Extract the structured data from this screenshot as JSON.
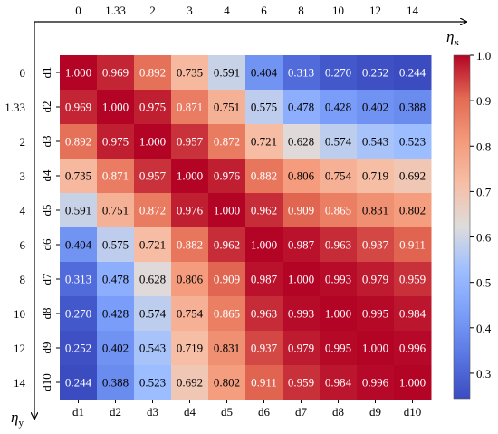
{
  "chart_data": {
    "type": "heatmap",
    "x_top_ticks": [
      "0",
      "1.33",
      "2",
      "3",
      "4",
      "6",
      "8",
      "10",
      "12",
      "14"
    ],
    "y_left_ticks": [
      "0",
      "1.33",
      "2",
      "3",
      "4",
      "6",
      "8",
      "10",
      "12",
      "14"
    ],
    "row_labels": [
      "d1",
      "d2",
      "d3",
      "d4",
      "d5",
      "d6",
      "d7",
      "d8",
      "d9",
      "d10"
    ],
    "col_labels": [
      "d1",
      "d2",
      "d3",
      "d4",
      "d5",
      "d6",
      "d7",
      "d8",
      "d9",
      "d10"
    ],
    "x_axis_label": "η",
    "x_axis_sub": "x",
    "y_axis_label": "η",
    "y_axis_sub": "y",
    "colorbar": {
      "min": 0.244,
      "max": 1.0,
      "ticks": [
        "1.0",
        "0.9",
        "0.8",
        "0.7",
        "0.6",
        "0.5",
        "0.4",
        "0.3"
      ],
      "tick_values": [
        1.0,
        0.9,
        0.8,
        0.7,
        0.6,
        0.5,
        0.4,
        0.3
      ],
      "colormap": "coolwarm"
    },
    "values": [
      [
        1.0,
        0.969,
        0.892,
        0.735,
        0.591,
        0.404,
        0.313,
        0.27,
        0.252,
        0.244
      ],
      [
        0.969,
        1.0,
        0.975,
        0.871,
        0.751,
        0.575,
        0.478,
        0.428,
        0.402,
        0.388
      ],
      [
        0.892,
        0.975,
        1.0,
        0.957,
        0.872,
        0.721,
        0.628,
        0.574,
        0.543,
        0.523
      ],
      [
        0.735,
        0.871,
        0.957,
        1.0,
        0.976,
        0.882,
        0.806,
        0.754,
        0.719,
        0.692
      ],
      [
        0.591,
        0.751,
        0.872,
        0.976,
        1.0,
        0.962,
        0.909,
        0.865,
        0.831,
        0.802
      ],
      [
        0.404,
        0.575,
        0.721,
        0.882,
        0.962,
        1.0,
        0.987,
        0.963,
        0.937,
        0.911
      ],
      [
        0.313,
        0.478,
        0.628,
        0.806,
        0.909,
        0.987,
        1.0,
        0.993,
        0.979,
        0.959
      ],
      [
        0.27,
        0.428,
        0.574,
        0.754,
        0.865,
        0.963,
        0.993,
        1.0,
        0.995,
        0.984
      ],
      [
        0.252,
        0.402,
        0.543,
        0.719,
        0.831,
        0.937,
        0.979,
        0.995,
        1.0,
        0.996
      ],
      [
        0.244,
        0.388,
        0.523,
        0.692,
        0.802,
        0.911,
        0.959,
        0.984,
        0.996,
        1.0
      ]
    ],
    "value_labels": [
      [
        "1.000",
        "0.969",
        "0.892",
        "0.735",
        "0.591",
        "0.404",
        "0.313",
        "0.270",
        "0.252",
        "0.244"
      ],
      [
        "0.969",
        "1.000",
        "0.975",
        "0.871",
        "0.751",
        "0.575",
        "0.478",
        "0.428",
        "0.402",
        "0.388"
      ],
      [
        "0.892",
        "0.975",
        "1.000",
        "0.957",
        "0.872",
        "0.721",
        "0.628",
        "0.574",
        "0.543",
        "0.523"
      ],
      [
        "0.735",
        "0.871",
        "0.957",
        "1.000",
        "0.976",
        "0.882",
        "0.806",
        "0.754",
        "0.719",
        "0.692"
      ],
      [
        "0.591",
        "0.751",
        "0.872",
        "0.976",
        "1.000",
        "0.962",
        "0.909",
        "0.865",
        "0.831",
        "0.802"
      ],
      [
        "0.404",
        "0.575",
        "0.721",
        "0.882",
        "0.962",
        "1.000",
        "0.987",
        "0.963",
        "0.937",
        "0.911"
      ],
      [
        "0.313",
        "0.478",
        "0.628",
        "0.806",
        "0.909",
        "0.987",
        "1.000",
        "0.993",
        "0.979",
        "0.959"
      ],
      [
        "0.270",
        "0.428",
        "0.574",
        "0.754",
        "0.865",
        "0.963",
        "0.993",
        "1.000",
        "0.995",
        "0.984"
      ],
      [
        "0.252",
        "0.402",
        "0.543",
        "0.719",
        "0.831",
        "0.937",
        "0.979",
        "0.995",
        "1.000",
        "0.996"
      ],
      [
        "0.244",
        "0.388",
        "0.523",
        "0.692",
        "0.802",
        "0.911",
        "0.959",
        "0.984",
        "0.996",
        "1.000"
      ]
    ]
  }
}
